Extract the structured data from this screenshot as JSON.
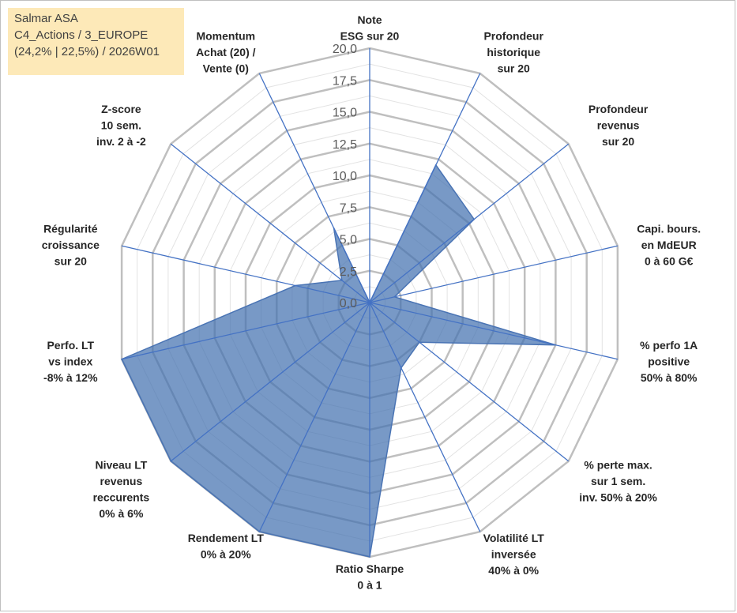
{
  "info": {
    "line1": "Salmar ASA",
    "line2": "C4_Actions / 3_EUROPE",
    "line3": "(24,2% | 22,5%) / 2026W01"
  },
  "chart_data": {
    "type": "radar",
    "title": "",
    "rlim": [
      0,
      20
    ],
    "ticks": [
      0,
      2.5,
      5,
      7.5,
      10,
      12.5,
      15,
      17.5,
      20
    ],
    "tick_labels": [
      "0,0",
      "2,5",
      "5,0",
      "7,5",
      "10,0",
      "12,5",
      "15,0",
      "17,5",
      "20,0"
    ],
    "grid_rings": 16,
    "axes": [
      {
        "label": [
          "Note",
          "ESG sur 20"
        ]
      },
      {
        "label": [
          "Profondeur",
          "historique",
          "sur 20"
        ]
      },
      {
        "label": [
          "Profondeur",
          "revenus",
          "sur 20"
        ]
      },
      {
        "label": [
          "Capi. bours.",
          "en MdEUR",
          "0 à 60 G€"
        ]
      },
      {
        "label": [
          "% perfo 1A",
          "positive",
          "50% à 80%"
        ]
      },
      {
        "label": [
          "% perte max.",
          "sur 1 sem.",
          "inv. 50% à 20%"
        ]
      },
      {
        "label": [
          "Volatilité LT",
          "inversée",
          "40% à 0%"
        ]
      },
      {
        "label": [
          "Ratio Sharpe",
          "0 à 1"
        ]
      },
      {
        "label": [
          "Rendement LT",
          "0% à 20%"
        ]
      },
      {
        "label": [
          "Niveau LT",
          "revenus",
          "reccurents",
          "0% à 6%"
        ]
      },
      {
        "label": [
          "Perfo. LT",
          "vs index",
          "-8% à 12%"
        ]
      },
      {
        "label": [
          "Régularité",
          "croissance",
          "sur 20"
        ]
      },
      {
        "label": [
          "Z-score",
          "10 sem.",
          "inv. 2 à -2"
        ]
      },
      {
        "label": [
          "Momentum",
          "Achat (20) /",
          "Vente (0)"
        ]
      }
    ],
    "series": [
      {
        "name": "Salmar ASA",
        "values": [
          0,
          12,
          10.5,
          2.0,
          15.0,
          5.0,
          5.7,
          20,
          20,
          20,
          20,
          6.0,
          2.8,
          6.5
        ]
      }
    ]
  }
}
